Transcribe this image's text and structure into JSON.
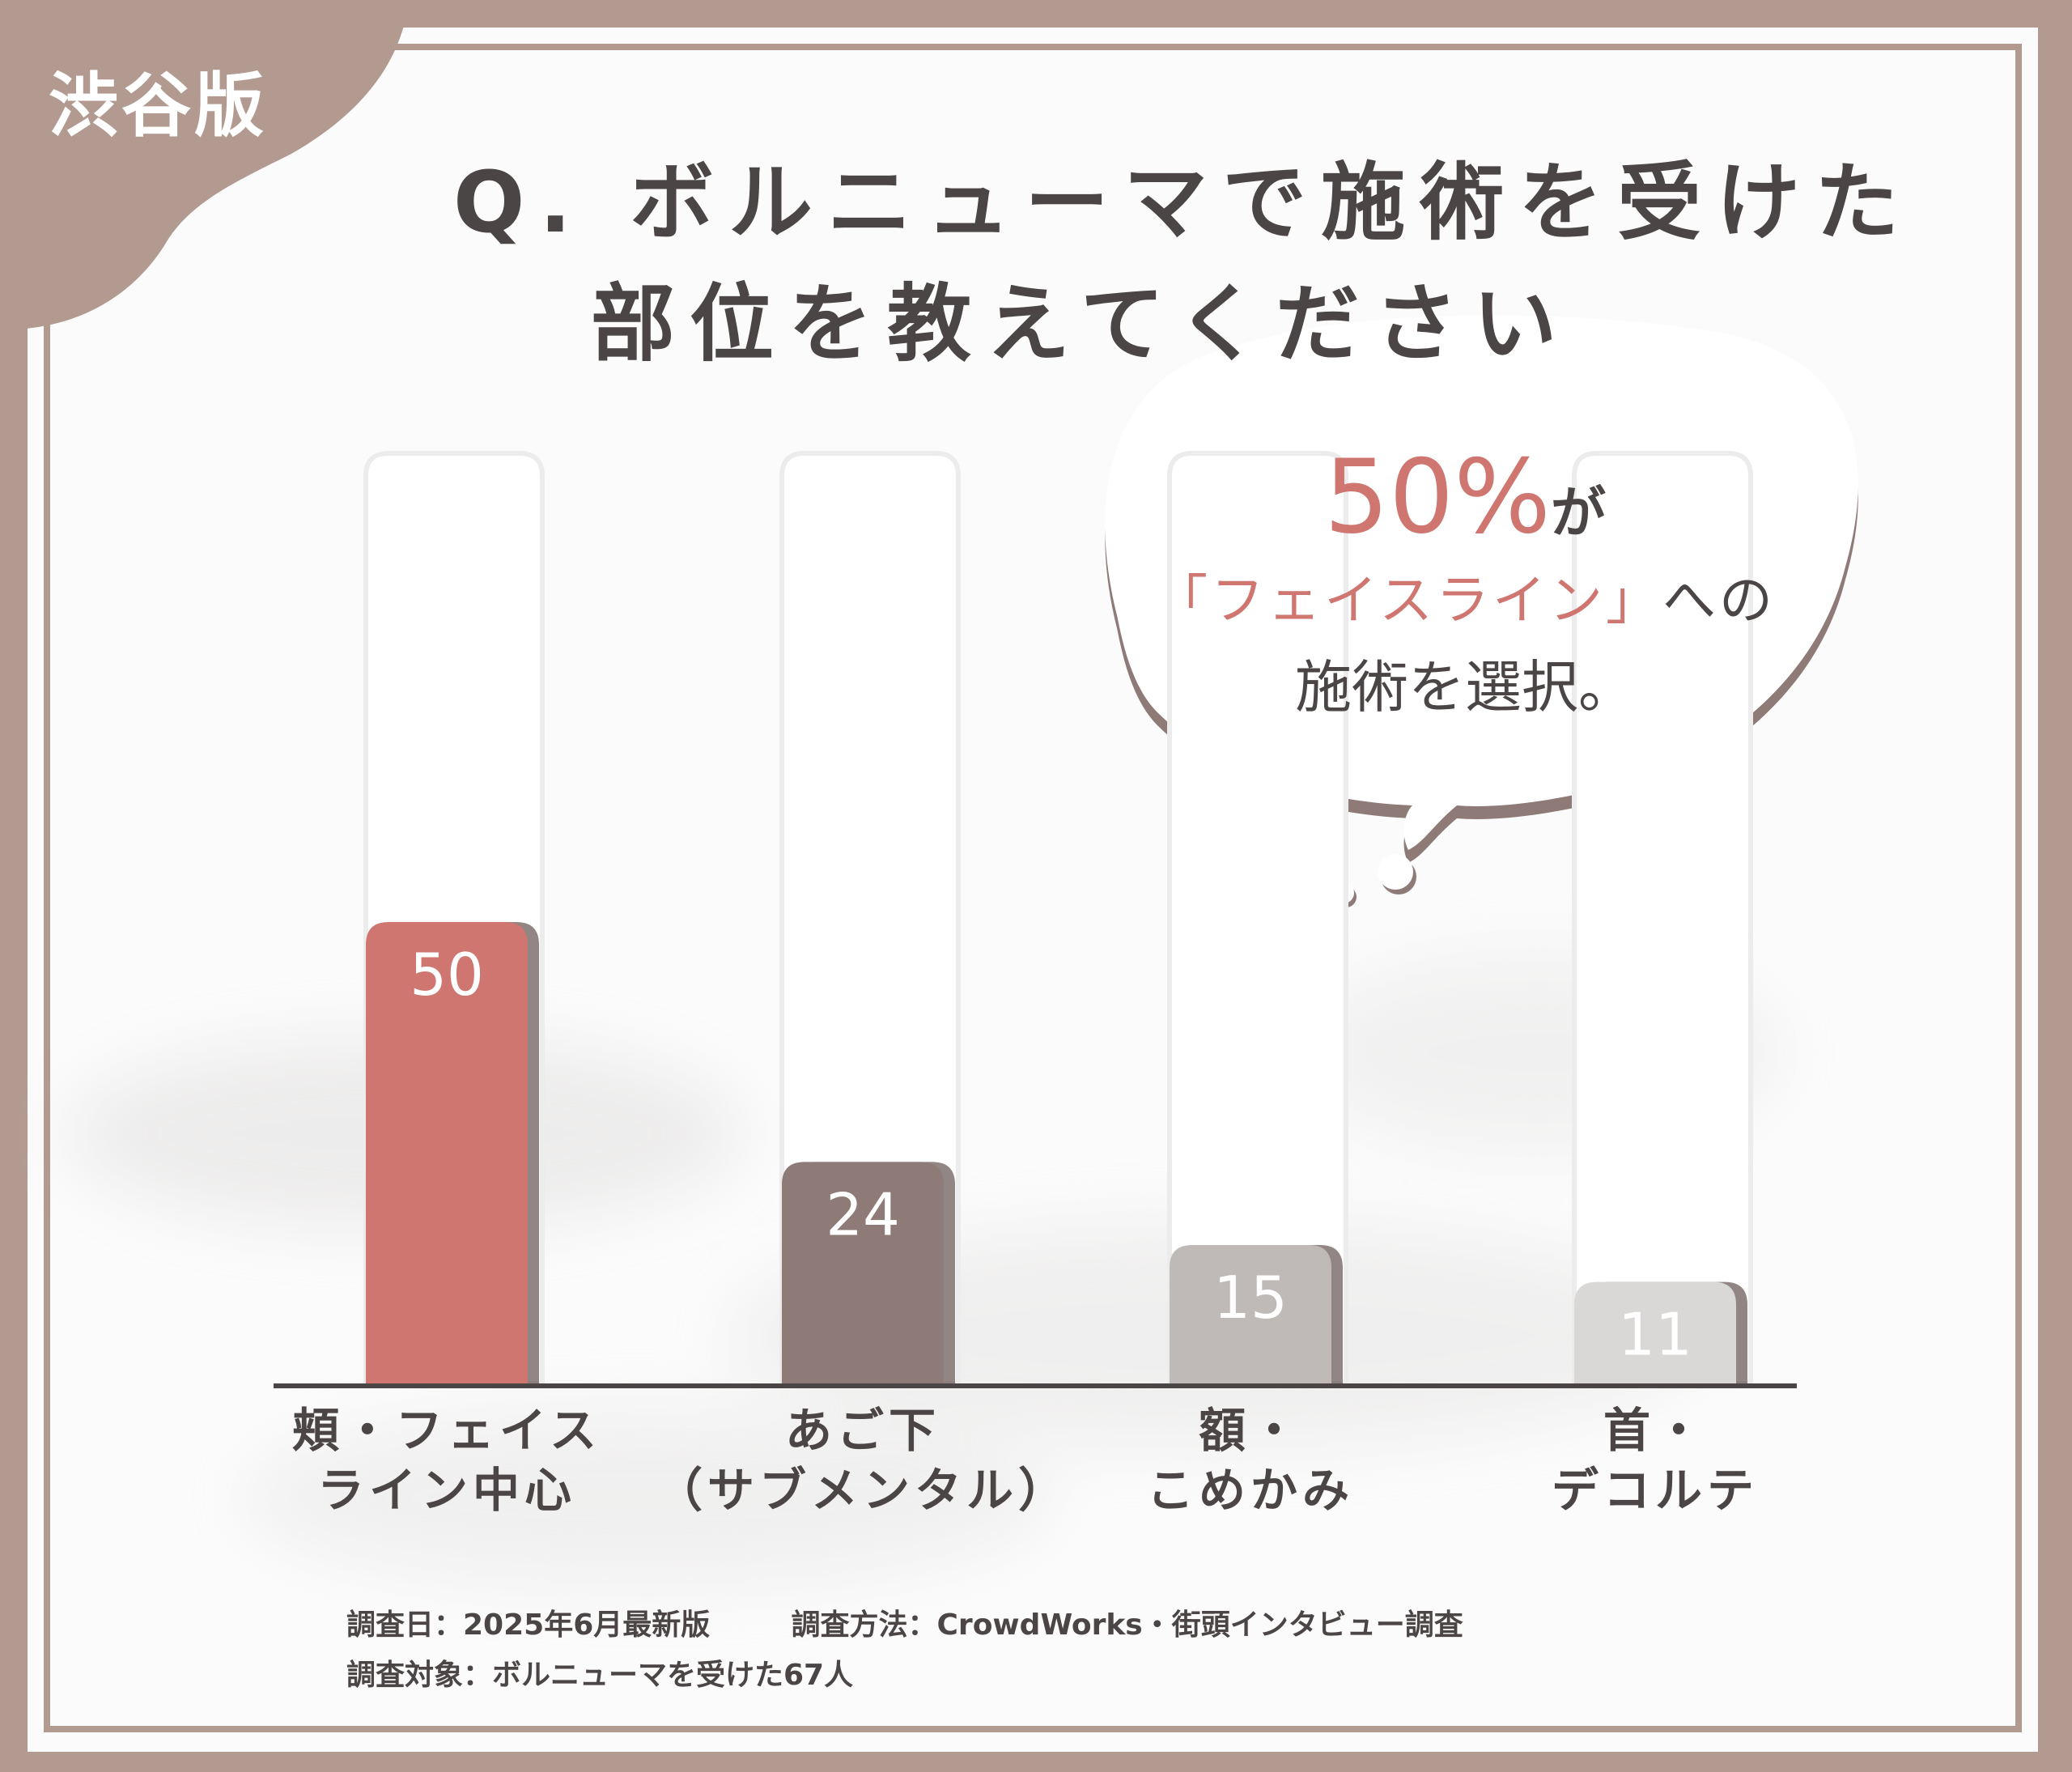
{
  "tag": "渋谷版",
  "title": {
    "line1": "Q. ボルニューマで施術を受けた",
    "line2": "部位を教えてください"
  },
  "callout": {
    "highlight": "50%",
    "highlight_suffix": "が",
    "line2_highlight": "「フェイスライン」",
    "line2_suffix": "への",
    "line3": "施術を選択。"
  },
  "chart_data": {
    "type": "bar",
    "categories": [
      [
        "頬・フェイス",
        "ライン中心"
      ],
      [
        "あご下",
        "（サブメンタル）"
      ],
      [
        "額・",
        "こめかみ"
      ],
      [
        "首・",
        "デコルテ"
      ]
    ],
    "values": [
      50,
      24,
      15,
      11
    ],
    "ylim": [
      0,
      50
    ],
    "grid": false,
    "legend": "none",
    "colors": [
      "#cf7670",
      "#8e7a77",
      "#bfbab8",
      "#dad8d7"
    ]
  },
  "footer": {
    "date": "調査日：2025年6月最新版",
    "method": "調査方法：CrowdWorks・街頭インタビュー調査",
    "target": "調査対象：ボルニューマを受けた67人"
  }
}
